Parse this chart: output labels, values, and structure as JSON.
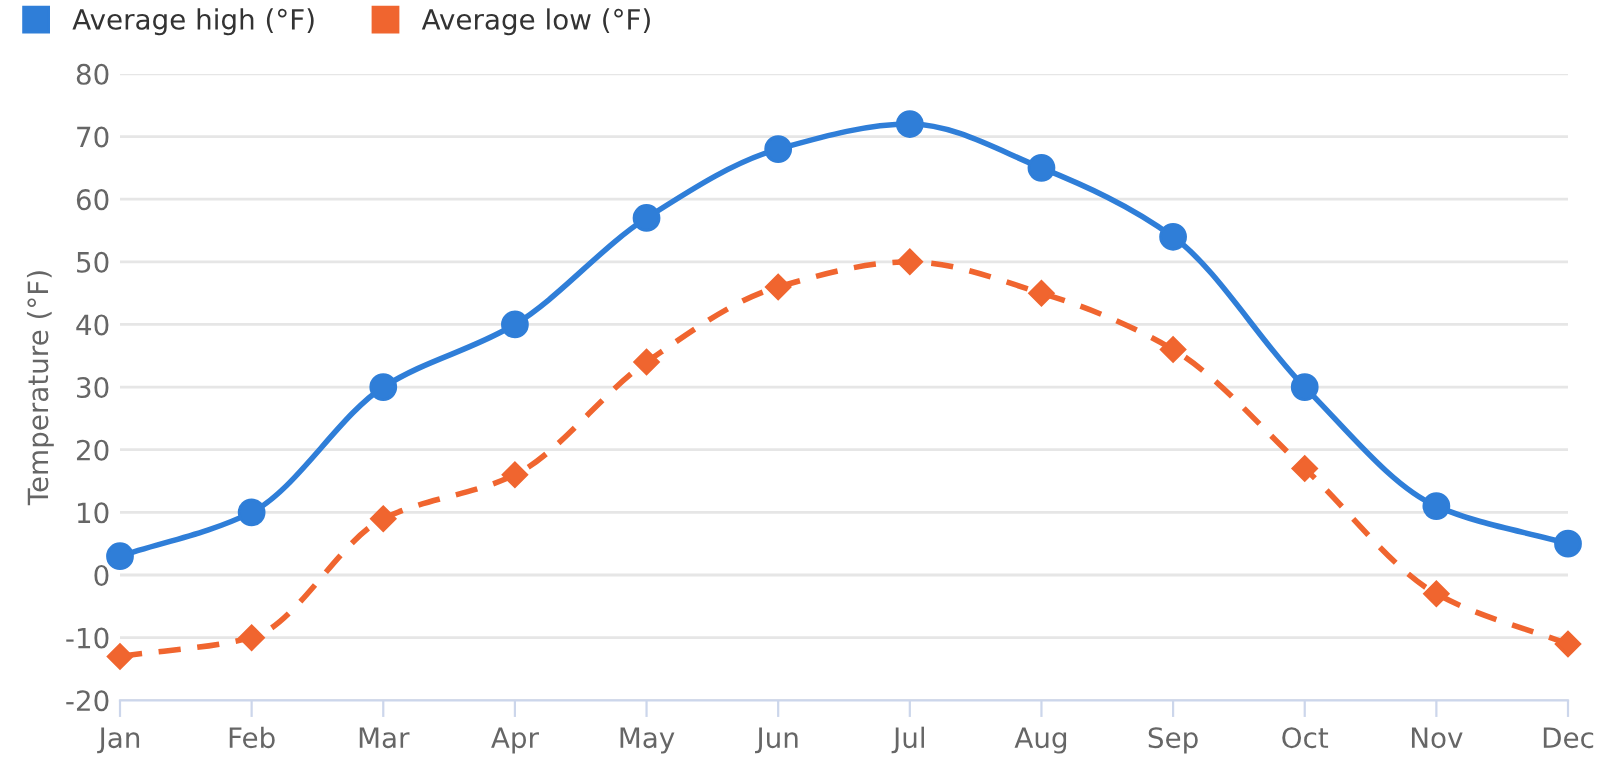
{
  "chart_data": {
    "type": "line",
    "ylabel": "Temperature (°F)",
    "categories": [
      "Jan",
      "Feb",
      "Mar",
      "Apr",
      "May",
      "Jun",
      "Jul",
      "Aug",
      "Sep",
      "Oct",
      "Nov",
      "Dec"
    ],
    "series": [
      {
        "name": "Average high (°F)",
        "color": "#2f7ed8",
        "values": [
          3,
          10,
          30,
          40,
          57,
          68,
          72,
          65,
          54,
          30,
          11,
          5
        ],
        "marker": "circle",
        "line_style": "solid"
      },
      {
        "name": "Average low (°F)",
        "color": "#f0652f",
        "values": [
          -13,
          -10,
          9,
          16,
          34,
          46,
          50,
          45,
          36,
          17,
          -3,
          -11
        ],
        "marker": "diamond",
        "line_style": "dashed"
      }
    ],
    "ylim": [
      -20,
      80
    ],
    "yticks": [
      -20,
      -10,
      0,
      10,
      20,
      30,
      40,
      50,
      60,
      70,
      80
    ],
    "grid": "y",
    "legend": "top left"
  }
}
